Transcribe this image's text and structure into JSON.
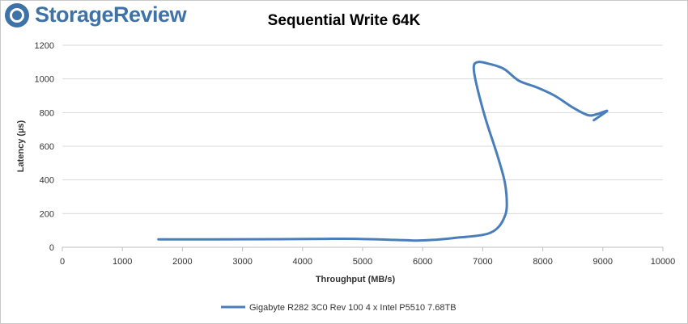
{
  "brand": {
    "logo_text": "StorageReview",
    "logo_color": "#3f73a8"
  },
  "chart_data": {
    "type": "line",
    "title": "Sequential Write 64K",
    "xlabel": "Throughput (MB/s)",
    "ylabel": "Latency (µs)",
    "xlim": [
      0,
      10000
    ],
    "ylim": [
      0,
      1200
    ],
    "x_ticks": [
      0,
      1000,
      2000,
      3000,
      4000,
      5000,
      6000,
      7000,
      8000,
      9000,
      10000
    ],
    "y_ticks": [
      0,
      200,
      400,
      600,
      800,
      1000,
      1200
    ],
    "grid": "horizontal",
    "legend_position": "bottom",
    "series": [
      {
        "name": "Gigabyte R282 3C0 Rev 100 4 x Intel P5510 7.68TB",
        "color": "#4a7ebb",
        "points": [
          [
            1600,
            47
          ],
          [
            2500,
            47
          ],
          [
            3600,
            48
          ],
          [
            4400,
            50
          ],
          [
            4900,
            50
          ],
          [
            5400,
            45
          ],
          [
            5900,
            40
          ],
          [
            6200,
            44
          ],
          [
            6600,
            58
          ],
          [
            6900,
            68
          ],
          [
            7100,
            82
          ],
          [
            7250,
            115
          ],
          [
            7350,
            170
          ],
          [
            7400,
            240
          ],
          [
            7370,
            380
          ],
          [
            7250,
            540
          ],
          [
            7050,
            760
          ],
          [
            6900,
            960
          ],
          [
            6850,
            1070
          ],
          [
            6920,
            1100
          ],
          [
            7100,
            1090
          ],
          [
            7350,
            1060
          ],
          [
            7600,
            990
          ],
          [
            7900,
            950
          ],
          [
            8200,
            900
          ],
          [
            8500,
            830
          ],
          [
            8750,
            785
          ],
          [
            8900,
            790
          ],
          [
            9070,
            810
          ],
          [
            8850,
            755
          ]
        ]
      }
    ]
  }
}
